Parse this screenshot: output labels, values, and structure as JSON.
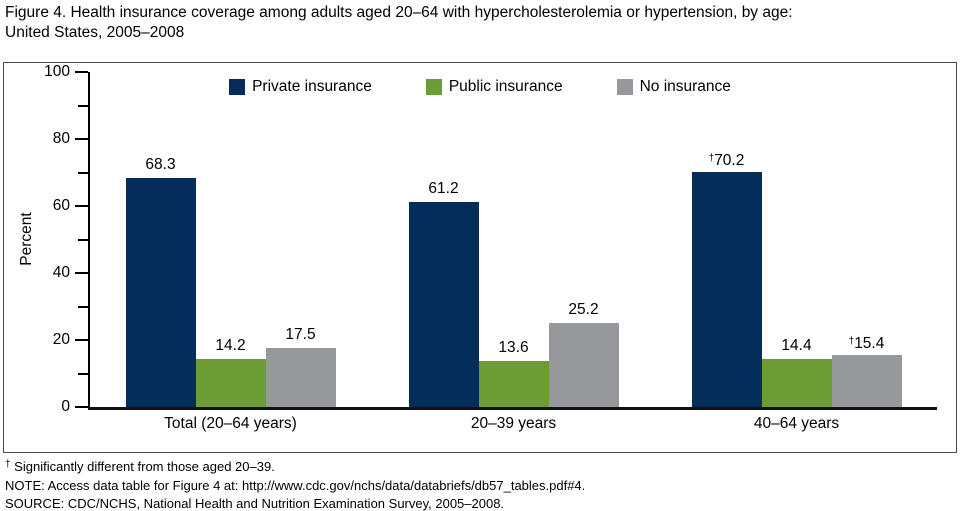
{
  "figure": {
    "title_line1": "Figure 4. Health insurance coverage among adults aged 20–64 with hypercholesterolemia or hypertension, by age:",
    "title_line2": "United States, 2005–2008"
  },
  "chart_data": {
    "type": "bar",
    "title": "Health insurance coverage among adults aged 20–64 with hypercholesterolemia or hypertension, by age: United States, 2005–2008",
    "categories": [
      "Total (20–64 years)",
      "20–39 years",
      "40–64 years"
    ],
    "series": [
      {
        "name": "Private insurance",
        "color": "#042d5c",
        "values": [
          68.3,
          61.2,
          70.2
        ],
        "dagger_flags": [
          false,
          false,
          true
        ]
      },
      {
        "name": "Public insurance",
        "color": "#6b9c35",
        "values": [
          14.2,
          13.6,
          14.4
        ],
        "dagger_flags": [
          false,
          false,
          false
        ]
      },
      {
        "name": "No insurance",
        "color": "#97989b",
        "values": [
          17.5,
          25.2,
          15.4
        ],
        "dagger_flags": [
          false,
          false,
          true
        ]
      }
    ],
    "ylabel": "Percent",
    "ylim": [
      0,
      100
    ],
    "yticks": [
      0,
      20,
      40,
      60,
      80,
      100
    ],
    "minor_yticks": [
      10,
      30,
      50,
      70,
      90
    ],
    "legend_position": "top-center",
    "grid": false,
    "dagger_symbol": "†"
  },
  "footnotes": {
    "dagger_symbol": "†",
    "dagger_text": " Significantly different from those aged 20–39.",
    "note": "NOTE: Access data table for Figure 4 at: http://www.cdc.gov/nchs/data/databriefs/db57_tables.pdf#4.",
    "source": "SOURCE: CDC/NCHS, National Health and Nutrition Examination Survey, 2005–2008."
  }
}
